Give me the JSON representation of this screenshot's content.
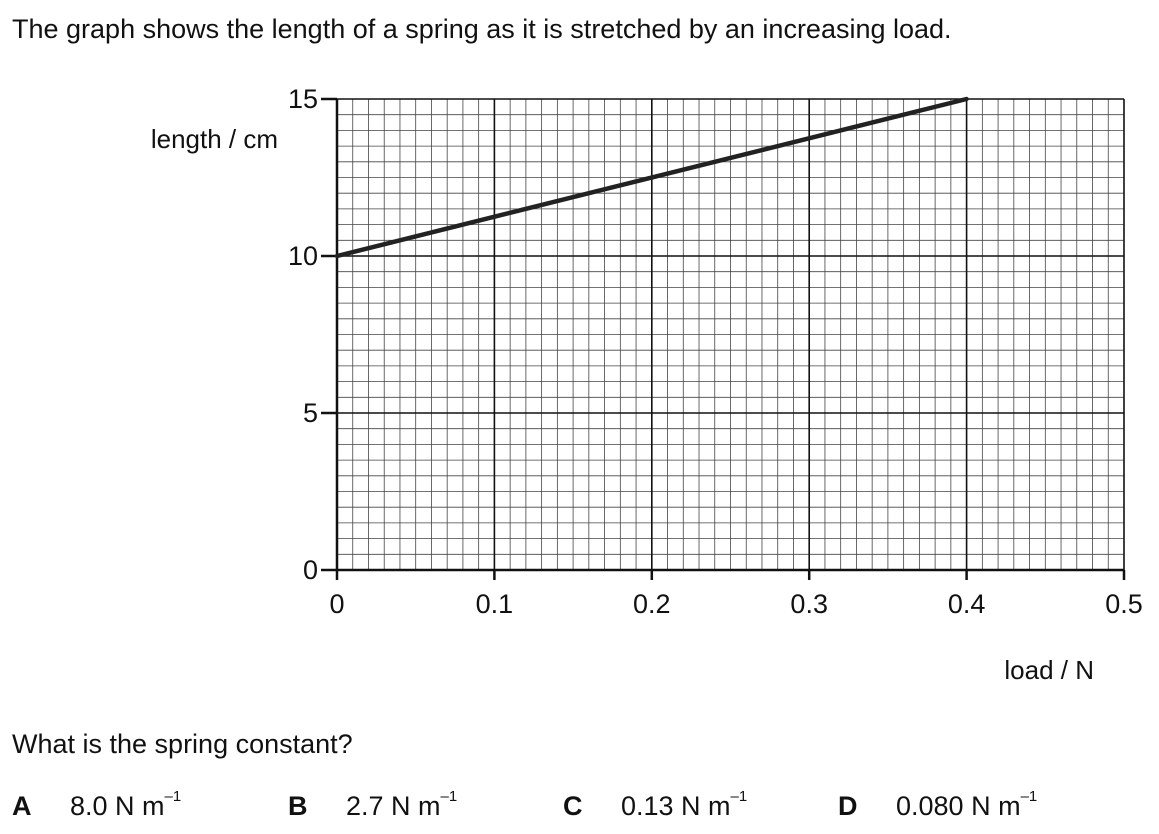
{
  "intro_text": "The graph shows the length of a spring as it is stretched by an increasing load.",
  "question_text": "What is the spring constant?",
  "chart_data": {
    "type": "line",
    "ylabel": "length / cm",
    "xlabel": "load / N",
    "xlim": [
      0,
      0.5
    ],
    "ylim": [
      0,
      15
    ],
    "x_ticks": [
      "0",
      "0.1",
      "0.2",
      "0.3",
      "0.4",
      "0.5"
    ],
    "y_ticks": [
      "0",
      "5",
      "10",
      "15"
    ],
    "grid": true,
    "series": [
      {
        "x": [
          0,
          0.4
        ],
        "y": [
          10,
          15
        ]
      }
    ]
  },
  "options": [
    {
      "letter": "A",
      "value": "8.0 N m",
      "exponent": "–1"
    },
    {
      "letter": "B",
      "value": "2.7 N m",
      "exponent": "–1"
    },
    {
      "letter": "C",
      "value": "0.13 N m",
      "exponent": "–1"
    },
    {
      "letter": "D",
      "value": "0.080 N m",
      "exponent": "–1"
    }
  ]
}
